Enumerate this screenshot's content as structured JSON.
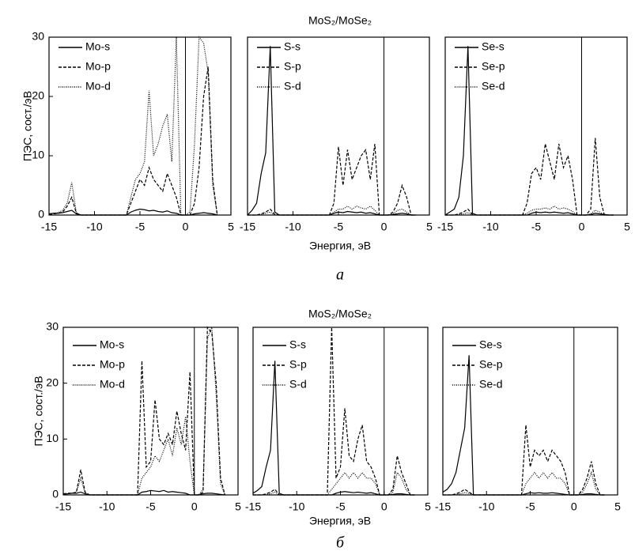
{
  "figures": [
    {
      "title": "MoS₂/MoSe₂",
      "xlabel": "Энергия, эВ",
      "ylabel": "ПЭС, сост./эВ",
      "caption": "а"
    },
    {
      "title": "MoS₂/MoSe₂",
      "xlabel": "Энергия, эВ",
      "ylabel": "ПЭС, сост./эВ",
      "caption": "б"
    }
  ],
  "chart_data": [
    {
      "type": "line",
      "xlim": [
        -15,
        5
      ],
      "ylim": [
        0,
        30
      ],
      "xticks": [
        -15,
        -10,
        -5,
        0,
        5
      ],
      "yticks": [
        0,
        10,
        20,
        30
      ],
      "vline": 0,
      "legend": "upper left",
      "x": [
        -15,
        -14.5,
        -14,
        -13.5,
        -13,
        -12.5,
        -12,
        -11.5,
        -11,
        -10.5,
        -10,
        -9.5,
        -9,
        -8.5,
        -8,
        -7.5,
        -7,
        -6.5,
        -6,
        -5.5,
        -5,
        -4.5,
        -4,
        -3.5,
        -3,
        -2.5,
        -2,
        -1.5,
        -1,
        -0.5,
        0,
        0.5,
        1,
        1.5,
        2,
        2.5,
        3,
        3.5
      ],
      "series": [
        {
          "name": "Mo-s",
          "color": "#000000",
          "dash": "solid",
          "values": [
            0.2,
            0.3,
            0.3,
            0.4,
            0.6,
            0.8,
            0.2,
            0,
            0,
            0,
            0,
            0,
            0,
            0,
            0,
            0,
            0,
            0,
            0.5,
            0.8,
            1,
            0.9,
            0.7,
            0.8,
            0.6,
            0.5,
            0.7,
            0.4,
            0.3,
            0,
            0,
            0,
            0.2,
            0.3,
            0.4,
            0.3,
            0.2,
            0
          ]
        },
        {
          "name": "Mo-p",
          "color": "#000000",
          "dash": "dashed",
          "values": [
            0.1,
            0.2,
            0.3,
            0.5,
            1.5,
            3,
            0.3,
            0,
            0,
            0,
            0,
            0,
            0,
            0,
            0,
            0,
            0,
            0,
            2,
            4,
            6,
            5,
            8,
            6,
            5,
            4,
            7,
            5,
            3,
            0,
            0,
            0,
            2,
            8,
            20,
            25,
            6,
            0
          ]
        },
        {
          "name": "Mo-d",
          "color": "#000000",
          "dash": "dotted",
          "values": [
            0.2,
            0.3,
            0.4,
            0.8,
            2,
            5.5,
            0.4,
            0,
            0,
            0,
            0,
            0,
            0,
            0,
            0,
            0,
            0,
            0,
            3,
            6,
            7,
            9,
            21,
            10,
            12,
            15,
            17,
            9,
            30,
            0,
            0,
            0.5,
            12,
            30,
            29,
            24,
            5,
            0
          ]
        }
      ]
    },
    {
      "type": "line",
      "xlim": [
        -15,
        5
      ],
      "ylim": [
        0,
        30
      ],
      "xticks": [
        -15,
        -10,
        -5,
        0,
        5
      ],
      "vline": 0,
      "legend": "upper left",
      "x": [
        -15,
        -14.5,
        -14,
        -13.5,
        -13,
        -12.5,
        -12,
        -11.5,
        -11,
        -10.5,
        -10,
        -9.5,
        -9,
        -8.5,
        -8,
        -7.5,
        -7,
        -6.5,
        -6,
        -5.5,
        -5,
        -4.5,
        -4,
        -3.5,
        -3,
        -2.5,
        -2,
        -1.5,
        -1,
        -0.5,
        0,
        0.5,
        1,
        1.5,
        2,
        2.5,
        3,
        3.5
      ],
      "series": [
        {
          "name": "S-s",
          "color": "#000000",
          "dash": "solid",
          "values": [
            0,
            0.8,
            2,
            7,
            10.5,
            28.5,
            0.5,
            0,
            0,
            0,
            0,
            0,
            0,
            0,
            0,
            0,
            0,
            0,
            0,
            0.3,
            0.5,
            0.4,
            0.6,
            0.5,
            0.4,
            0.5,
            0.3,
            0.4,
            0.2,
            0,
            0,
            0,
            0.1,
            0.2,
            0.3,
            0.2,
            0,
            0
          ]
        },
        {
          "name": "S-p",
          "color": "#000000",
          "dash": "dashed",
          "values": [
            0,
            0,
            0,
            0.2,
            0.5,
            1,
            0.1,
            0,
            0,
            0,
            0,
            0,
            0,
            0,
            0,
            0,
            0,
            0,
            0,
            2,
            11.5,
            5,
            11,
            6,
            8,
            10,
            11,
            6,
            12,
            0,
            0,
            0,
            0.5,
            2,
            5,
            3,
            0,
            0
          ]
        },
        {
          "name": "S-d",
          "color": "#000000",
          "dash": "dotted",
          "values": [
            0,
            0,
            0,
            0.1,
            0.3,
            0.5,
            0,
            0,
            0,
            0,
            0,
            0,
            0,
            0,
            0,
            0,
            0,
            0,
            0,
            0.5,
            1,
            1,
            1.5,
            1,
            1.5,
            1.2,
            1,
            1.5,
            0.8,
            0,
            0,
            0,
            0.2,
            0.8,
            1,
            0.5,
            0,
            0
          ]
        }
      ]
    },
    {
      "type": "line",
      "xlim": [
        -15,
        5
      ],
      "ylim": [
        0,
        30
      ],
      "xticks": [
        -15,
        -10,
        -5,
        0,
        5
      ],
      "vline": 0,
      "legend": "upper left",
      "x": [
        -15,
        -14.5,
        -14,
        -13.5,
        -13,
        -12.5,
        -12,
        -11.5,
        -11,
        -10.5,
        -10,
        -9.5,
        -9,
        -8.5,
        -8,
        -7.5,
        -7,
        -6.5,
        -6,
        -5.5,
        -5,
        -4.5,
        -4,
        -3.5,
        -3,
        -2.5,
        -2,
        -1.5,
        -1,
        -0.5,
        0,
        0.5,
        1,
        1.5,
        2,
        2.5,
        3,
        3.5
      ],
      "series": [
        {
          "name": "Se-s",
          "color": "#000000",
          "dash": "solid",
          "values": [
            0,
            0.5,
            1,
            3,
            10,
            28.5,
            0.3,
            0,
            0,
            0,
            0,
            0,
            0,
            0,
            0,
            0,
            0,
            0,
            0,
            0.3,
            0.5,
            0.4,
            0.5,
            0.4,
            0.5,
            0.4,
            0.3,
            0.4,
            0.2,
            0,
            0,
            0,
            0.1,
            0.3,
            0.2,
            0.1,
            0,
            0
          ]
        },
        {
          "name": "Se-p",
          "color": "#000000",
          "dash": "dashed",
          "values": [
            0,
            0,
            0,
            0.2,
            0.5,
            1,
            0.1,
            0,
            0,
            0,
            0,
            0,
            0,
            0,
            0,
            0,
            0,
            0,
            2,
            7,
            8,
            6,
            12,
            9,
            6,
            12,
            8,
            10,
            6,
            0,
            0,
            0,
            1,
            13,
            3,
            0,
            0,
            0
          ]
        },
        {
          "name": "Se-d",
          "color": "#000000",
          "dash": "dotted",
          "values": [
            0,
            0,
            0,
            0.1,
            0.2,
            0.4,
            0,
            0,
            0,
            0,
            0,
            0,
            0,
            0,
            0,
            0,
            0,
            0,
            0.3,
            0.8,
            1,
            1,
            1.2,
            1,
            1.5,
            1,
            1.2,
            1,
            0.6,
            0,
            0,
            0,
            0.2,
            0.8,
            0.5,
            0,
            0,
            0
          ]
        }
      ]
    },
    {
      "type": "line",
      "xlim": [
        -15,
        5
      ],
      "ylim": [
        0,
        30
      ],
      "xticks": [
        -15,
        -10,
        -5,
        0,
        5
      ],
      "yticks": [
        0,
        10,
        20,
        30
      ],
      "vline": 0,
      "legend": "upper left",
      "x": [
        -15,
        -14.5,
        -14,
        -13.5,
        -13,
        -12.5,
        -12,
        -11.5,
        -11,
        -10.5,
        -10,
        -9.5,
        -9,
        -8.5,
        -8,
        -7.5,
        -7,
        -6.5,
        -6,
        -5.5,
        -5,
        -4.5,
        -4,
        -3.5,
        -3,
        -2.5,
        -2,
        -1.5,
        -1,
        -0.5,
        0,
        0.5,
        1,
        1.5,
        2,
        2.5,
        3,
        3.5
      ],
      "series": [
        {
          "name": "Mo-s",
          "color": "#000000",
          "dash": "solid",
          "values": [
            0.1,
            0.2,
            0.3,
            0.3,
            0.5,
            0.2,
            0,
            0,
            0,
            0,
            0,
            0,
            0,
            0,
            0,
            0,
            0,
            0,
            0.5,
            0.6,
            0.8,
            0.7,
            0.6,
            0.8,
            0.5,
            0.6,
            0.5,
            0.4,
            0.3,
            0,
            0,
            0,
            0.2,
            0.3,
            0.3,
            0.2,
            0.1,
            0
          ]
        },
        {
          "name": "Mo-p",
          "color": "#000000",
          "dash": "dashed",
          "values": [
            0.2,
            0.3,
            0.3,
            0.5,
            4.5,
            0.5,
            0,
            0,
            0,
            0,
            0,
            0,
            0,
            0,
            0,
            0,
            0,
            0,
            24,
            5,
            6,
            17,
            10,
            9,
            11,
            9,
            15,
            11,
            8,
            22,
            0,
            0,
            0.5,
            30,
            29,
            20,
            3,
            0
          ]
        },
        {
          "name": "Mo-d",
          "color": "#000000",
          "dash": "dotted",
          "values": [
            0.1,
            0.2,
            0.3,
            0.5,
            3,
            0.3,
            0,
            0,
            0,
            0,
            0,
            0,
            0,
            0,
            0,
            0,
            0,
            0,
            3,
            4,
            5,
            7,
            6,
            8,
            10,
            7,
            12,
            9,
            14,
            6,
            0,
            0,
            1,
            28,
            30,
            18,
            2,
            0
          ]
        }
      ]
    },
    {
      "type": "line",
      "xlim": [
        -15,
        5
      ],
      "ylim": [
        0,
        30
      ],
      "xticks": [
        -15,
        -10,
        -5,
        0,
        5
      ],
      "vline": 0,
      "legend": "upper left",
      "x": [
        -15,
        -14.5,
        -14,
        -13.5,
        -13,
        -12.5,
        -12,
        -11.5,
        -11,
        -10.5,
        -10,
        -9.5,
        -9,
        -8.5,
        -8,
        -7.5,
        -7,
        -6.5,
        -6,
        -5.5,
        -5,
        -4.5,
        -4,
        -3.5,
        -3,
        -2.5,
        -2,
        -1.5,
        -1,
        -0.5,
        0,
        0.5,
        1,
        1.5,
        2,
        2.5,
        3,
        3.5
      ],
      "series": [
        {
          "name": "S-s",
          "color": "#000000",
          "dash": "solid",
          "values": [
            0.3,
            0.8,
            1.5,
            5,
            8,
            24,
            0.3,
            0,
            0,
            0,
            0,
            0,
            0,
            0,
            0,
            0,
            0,
            0,
            0,
            0.3,
            0.5,
            0.6,
            0.5,
            0.4,
            0.5,
            0.4,
            0.3,
            0.4,
            0.2,
            0,
            0,
            0,
            0.1,
            0.2,
            0.2,
            0.1,
            0,
            0
          ]
        },
        {
          "name": "S-p",
          "color": "#000000",
          "dash": "dashed",
          "values": [
            0,
            0,
            0,
            0.2,
            0.5,
            1,
            0,
            0,
            0,
            0,
            0,
            0,
            0,
            0,
            0,
            0,
            0,
            0,
            30,
            3,
            5,
            15.5,
            7,
            6,
            10,
            12.5,
            6,
            5,
            3,
            0,
            0,
            0,
            1,
            7,
            4,
            2,
            0,
            0
          ]
        },
        {
          "name": "S-d",
          "color": "#000000",
          "dash": "dotted",
          "values": [
            0,
            0,
            0,
            0.1,
            0.2,
            0.5,
            0,
            0,
            0,
            0,
            0,
            0,
            0,
            0,
            0,
            0,
            0,
            0,
            1,
            2,
            3,
            4,
            3,
            4,
            3,
            4,
            3,
            3,
            2,
            0,
            0,
            0,
            0.5,
            4,
            3,
            1,
            0,
            0
          ]
        }
      ]
    },
    {
      "type": "line",
      "xlim": [
        -15,
        5
      ],
      "ylim": [
        0,
        30
      ],
      "xticks": [
        -15,
        -10,
        -5,
        0,
        5
      ],
      "vline": 0,
      "legend": "upper left",
      "x": [
        -15,
        -14.5,
        -14,
        -13.5,
        -13,
        -12.5,
        -12,
        -11.5,
        -11,
        -10.5,
        -10,
        -9.5,
        -9,
        -8.5,
        -8,
        -7.5,
        -7,
        -6.5,
        -6,
        -5.5,
        -5,
        -4.5,
        -4,
        -3.5,
        -3,
        -2.5,
        -2,
        -1.5,
        -1,
        -0.5,
        0,
        0.5,
        1,
        1.5,
        2,
        2.5,
        3,
        3.5
      ],
      "series": [
        {
          "name": "Se-s",
          "color": "#000000",
          "dash": "solid",
          "values": [
            0.5,
            1,
            2,
            4,
            8,
            12,
            25,
            0,
            0,
            0,
            0,
            0,
            0,
            0,
            0,
            0,
            0,
            0,
            0,
            0.2,
            0.4,
            0.3,
            0.4,
            0.3,
            0.3,
            0.4,
            0.3,
            0.2,
            0.1,
            0,
            0,
            0,
            0.1,
            0.2,
            0.2,
            0.1,
            0,
            0
          ]
        },
        {
          "name": "Se-p",
          "color": "#000000",
          "dash": "dashed",
          "values": [
            0,
            0,
            0,
            0.2,
            0.5,
            1,
            0.5,
            0,
            0,
            0,
            0,
            0,
            0,
            0,
            0,
            0,
            0,
            0,
            0,
            12.5,
            5,
            8,
            7,
            8,
            6,
            8,
            7,
            6,
            4,
            0,
            0,
            0,
            1,
            3,
            6,
            2,
            0,
            0
          ]
        },
        {
          "name": "Se-d",
          "color": "#000000",
          "dash": "dotted",
          "values": [
            0,
            0,
            0,
            0.1,
            0.2,
            0.4,
            0.3,
            0,
            0,
            0,
            0,
            0,
            0,
            0,
            0,
            0,
            0,
            0,
            0,
            2,
            3,
            4,
            3,
            4,
            3,
            4,
            3,
            3,
            2,
            0,
            0,
            0,
            0.5,
            2,
            4,
            1,
            0,
            0
          ]
        }
      ]
    }
  ]
}
